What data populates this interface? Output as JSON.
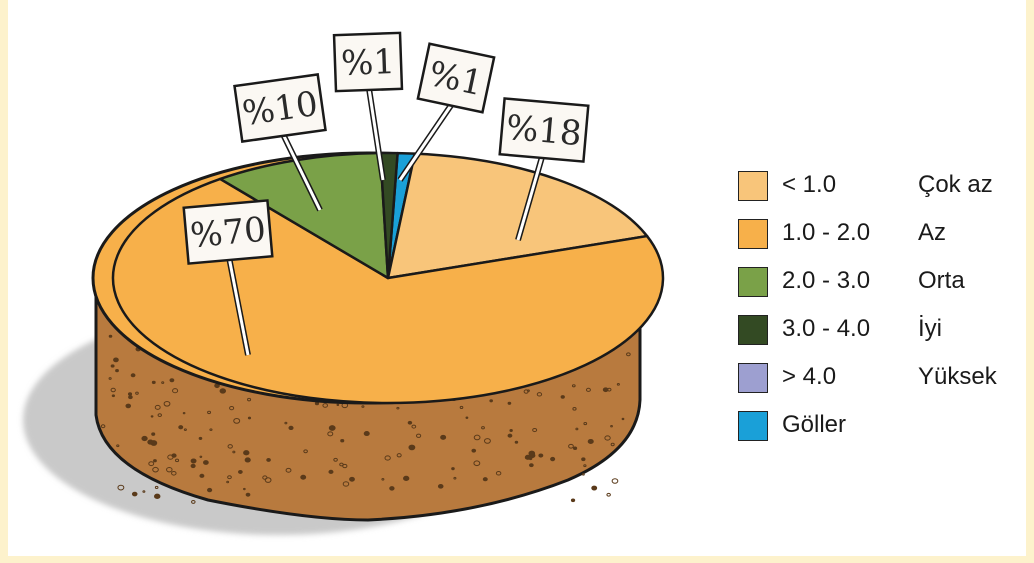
{
  "chart_data": {
    "type": "pie",
    "title": "",
    "slices": [
      {
        "legend_range": "< 1.0",
        "legend_label": "Çok az",
        "value": 18,
        "tag": "%18",
        "color": "#f8c57a"
      },
      {
        "legend_range": "1.0 - 2.0",
        "legend_label": "Az",
        "value": 70,
        "tag": "%70",
        "color": "#f7b04a"
      },
      {
        "legend_range": "2.0 - 3.0",
        "legend_label": "Orta",
        "value": 10,
        "tag": "%10",
        "color": "#7aa148"
      },
      {
        "legend_range": "3.0 - 4.0",
        "legend_label": "İyi",
        "value": 1,
        "tag": "%1",
        "color": "#334a23"
      },
      {
        "legend_range": "> 4.0",
        "legend_label": "Yüksek",
        "value": 0,
        "tag": "",
        "color": "#9d9fd0"
      },
      {
        "legend_range": "",
        "legend_label": "Göller",
        "value": 1,
        "tag": "%1",
        "color": "#1aa0d8"
      }
    ],
    "legend_position": "right"
  },
  "colors": {
    "background": "#fdf2cc",
    "cake_side": "#b87a3e",
    "outline": "#1a1a1a"
  }
}
